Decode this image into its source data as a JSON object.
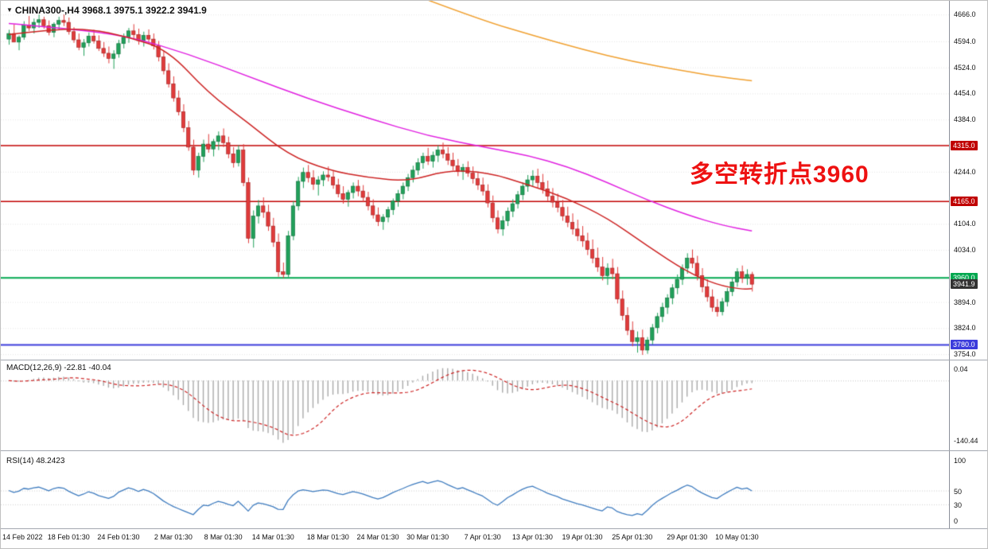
{
  "window": {
    "title": "CHINA300-,H4 3968.1 3975.1 3922.2 3941.9",
    "symbol": "CHINA300-",
    "timeframe": "H4"
  },
  "annotation": {
    "text": "多空转折点3960",
    "color": "#ee1111"
  },
  "indicators": {
    "macd": {
      "label": "MACD(12,26,9) -22.81 -40.04",
      "value": -22.81,
      "signal_value": -40.04,
      "axis_max": "0.04",
      "axis_min": "-140.44",
      "params": {
        "fast": 12,
        "slow": 26,
        "signal": 9
      }
    },
    "rsi": {
      "label": "RSI(14) 48.2423",
      "value": 48.2423,
      "period": 14,
      "axis_values": [
        100,
        50,
        30,
        0
      ],
      "levels": [
        50,
        30
      ]
    }
  },
  "chart_data": {
    "type": "candlestick",
    "title": "CHINA300- H4",
    "last": {
      "open": 3968.1,
      "high": 3975.1,
      "low": 3922.2,
      "close": 3941.9
    },
    "y_axis": {
      "labels": [
        4666,
        4594,
        4524,
        4454,
        4384,
        4244,
        4104,
        4034,
        3894,
        3824,
        3754
      ],
      "min": 3750,
      "max": 4690
    },
    "x_labels": [
      "14 Feb 2022",
      "18 Feb 01:30",
      "24 Feb 01:30",
      "2 Mar 01:30",
      "8 Mar 01:30",
      "14 Mar 01:30",
      "18 Mar 01:30",
      "24 Mar 01:30",
      "30 Mar 01:30",
      "7 Apr 01:30",
      "13 Apr 01:30",
      "19 Apr 01:30",
      "25 Apr 01:30",
      "29 Apr 01:30",
      "10 May 01:30"
    ],
    "x_label_indices": [
      0,
      12,
      22,
      33,
      43,
      53,
      64,
      74,
      84,
      95,
      105,
      115,
      125,
      136,
      146
    ],
    "hlines": [
      {
        "price": 4315.0,
        "label": "4315.0",
        "color": "#c00000",
        "width": 1.6
      },
      {
        "price": 4165.0,
        "label": "4165.0",
        "color": "#c00000",
        "width": 1.6
      },
      {
        "price": 3960.0,
        "label": "3960.0",
        "color": "#00a84f",
        "width": 2
      },
      {
        "price": 3780.0,
        "label": "3780.0",
        "color": "#3c3cdc",
        "width": 2
      }
    ],
    "current_price": {
      "price": 3941.9,
      "label": "3941.9",
      "color": "#333333"
    },
    "colors": {
      "up": "#21a05a",
      "up_border": "#0c6b38",
      "down": "#e03b3b",
      "down_border": "#9e1f1f",
      "macd_hist": "#a9a9a9",
      "macd_signal": "#cc2222",
      "rsi_line": "#3f7cbf",
      "grid": "#e4e4e4"
    },
    "overlays": {
      "ma_magenta": {
        "color": "#e020e0",
        "points": [
          [
            0,
            4642
          ],
          [
            12,
            4628
          ],
          [
            24,
            4608
          ],
          [
            36,
            4560
          ],
          [
            48,
            4500
          ],
          [
            60,
            4440
          ],
          [
            72,
            4388
          ],
          [
            84,
            4340
          ],
          [
            96,
            4308
          ],
          [
            104,
            4288
          ],
          [
            112,
            4258
          ],
          [
            120,
            4215
          ],
          [
            128,
            4168
          ],
          [
            136,
            4128
          ],
          [
            143,
            4100
          ],
          [
            149,
            4085
          ]
        ]
      },
      "ma_red": {
        "color": "#cc2222",
        "points": [
          [
            0,
            4612
          ],
          [
            8,
            4625
          ],
          [
            16,
            4628
          ],
          [
            24,
            4606
          ],
          [
            32,
            4570
          ],
          [
            40,
            4455
          ],
          [
            48,
            4375
          ],
          [
            56,
            4290
          ],
          [
            64,
            4248
          ],
          [
            72,
            4228
          ],
          [
            80,
            4218
          ],
          [
            88,
            4248
          ],
          [
            96,
            4242
          ],
          [
            104,
            4210
          ],
          [
            112,
            4172
          ],
          [
            120,
            4120
          ],
          [
            128,
            4045
          ],
          [
            136,
            3975
          ],
          [
            142,
            3940
          ],
          [
            147,
            3928
          ],
          [
            149,
            3930
          ]
        ]
      },
      "ma_orange": {
        "color": "#f0a030",
        "points": [
          [
            84,
            4705
          ],
          [
            95,
            4650
          ],
          [
            105,
            4610
          ],
          [
            115,
            4572
          ],
          [
            125,
            4540
          ],
          [
            135,
            4515
          ],
          [
            143,
            4498
          ],
          [
            149,
            4488
          ]
        ]
      }
    },
    "candles": [
      [
        4600,
        4625,
        4585,
        4615
      ],
      [
        4615,
        4640,
        4600,
        4592
      ],
      [
        4592,
        4610,
        4570,
        4605
      ],
      [
        4605,
        4648,
        4598,
        4638
      ],
      [
        4638,
        4662,
        4622,
        4630
      ],
      [
        4630,
        4655,
        4615,
        4645
      ],
      [
        4645,
        4666,
        4630,
        4652
      ],
      [
        4652,
        4660,
        4628,
        4636
      ],
      [
        4636,
        4650,
        4610,
        4618
      ],
      [
        4618,
        4645,
        4605,
        4640
      ],
      [
        4640,
        4660,
        4625,
        4650
      ],
      [
        4650,
        4666,
        4635,
        4645
      ],
      [
        4645,
        4658,
        4612,
        4620
      ],
      [
        4620,
        4632,
        4590,
        4598
      ],
      [
        4598,
        4615,
        4570,
        4578
      ],
      [
        4578,
        4600,
        4555,
        4590
      ],
      [
        4590,
        4618,
        4580,
        4608
      ],
      [
        4608,
        4625,
        4588,
        4595
      ],
      [
        4595,
        4610,
        4568,
        4575
      ],
      [
        4575,
        4592,
        4552,
        4562
      ],
      [
        4562,
        4580,
        4535,
        4548
      ],
      [
        4548,
        4570,
        4520,
        4560
      ],
      [
        4560,
        4598,
        4550,
        4588
      ],
      [
        4588,
        4615,
        4575,
        4605
      ],
      [
        4605,
        4630,
        4590,
        4622
      ],
      [
        4622,
        4640,
        4600,
        4612
      ],
      [
        4612,
        4628,
        4585,
        4596
      ],
      [
        4596,
        4620,
        4580,
        4610
      ],
      [
        4610,
        4626,
        4592,
        4600
      ],
      [
        4600,
        4615,
        4572,
        4582
      ],
      [
        4582,
        4595,
        4540,
        4552
      ],
      [
        4552,
        4568,
        4505,
        4515
      ],
      [
        4515,
        4535,
        4470,
        4480
      ],
      [
        4480,
        4500,
        4432,
        4442
      ],
      [
        4442,
        4462,
        4395,
        4405
      ],
      [
        4405,
        4425,
        4350,
        4362
      ],
      [
        4362,
        4380,
        4300,
        4310
      ],
      [
        4310,
        4330,
        4235,
        4248
      ],
      [
        4248,
        4295,
        4228,
        4285
      ],
      [
        4285,
        4330,
        4270,
        4318
      ],
      [
        4318,
        4345,
        4295,
        4305
      ],
      [
        4305,
        4332,
        4285,
        4325
      ],
      [
        4325,
        4352,
        4302,
        4340
      ],
      [
        4340,
        4360,
        4310,
        4322
      ],
      [
        4322,
        4338,
        4280,
        4292
      ],
      [
        4292,
        4310,
        4255,
        4268
      ],
      [
        4268,
        4315,
        4258,
        4302
      ],
      [
        4302,
        4318,
        4205,
        4215
      ],
      [
        4215,
        4228,
        4052,
        4065
      ],
      [
        4065,
        4140,
        4040,
        4125
      ],
      [
        4125,
        4168,
        4105,
        4152
      ],
      [
        4152,
        4175,
        4120,
        4135
      ],
      [
        4135,
        4155,
        4085,
        4098
      ],
      [
        4098,
        4120,
        4042,
        4055
      ],
      [
        4055,
        4078,
        3962,
        3975
      ],
      [
        3975,
        4000,
        3958,
        3968
      ],
      [
        3968,
        4085,
        3960,
        4072
      ],
      [
        4072,
        4165,
        4060,
        4152
      ],
      [
        4152,
        4230,
        4140,
        4218
      ],
      [
        4218,
        4255,
        4200,
        4242
      ],
      [
        4242,
        4262,
        4215,
        4228
      ],
      [
        4228,
        4248,
        4195,
        4210
      ],
      [
        4210,
        4232,
        4180,
        4222
      ],
      [
        4222,
        4245,
        4205,
        4235
      ],
      [
        4235,
        4258,
        4218,
        4230
      ],
      [
        4230,
        4246,
        4198,
        4208
      ],
      [
        4208,
        4225,
        4175,
        4185
      ],
      [
        4185,
        4205,
        4158,
        4170
      ],
      [
        4170,
        4195,
        4150,
        4188
      ],
      [
        4188,
        4215,
        4172,
        4205
      ],
      [
        4205,
        4222,
        4178,
        4192
      ],
      [
        4192,
        4208,
        4162,
        4175
      ],
      [
        4175,
        4190,
        4140,
        4152
      ],
      [
        4152,
        4170,
        4118,
        4128
      ],
      [
        4128,
        4148,
        4098,
        4110
      ],
      [
        4110,
        4130,
        4088,
        4122
      ],
      [
        4122,
        4150,
        4108,
        4142
      ],
      [
        4142,
        4172,
        4128,
        4165
      ],
      [
        4165,
        4195,
        4150,
        4185
      ],
      [
        4185,
        4215,
        4170,
        4205
      ],
      [
        4205,
        4238,
        4192,
        4228
      ],
      [
        4228,
        4260,
        4215,
        4248
      ],
      [
        4248,
        4280,
        4235,
        4268
      ],
      [
        4268,
        4295,
        4252,
        4285
      ],
      [
        4285,
        4308,
        4262,
        4272
      ],
      [
        4272,
        4298,
        4255,
        4288
      ],
      [
        4288,
        4315,
        4270,
        4302
      ],
      [
        4302,
        4322,
        4280,
        4292
      ],
      [
        4292,
        4310,
        4262,
        4275
      ],
      [
        4275,
        4295,
        4248,
        4260
      ],
      [
        4260,
        4278,
        4232,
        4245
      ],
      [
        4245,
        4265,
        4222,
        4255
      ],
      [
        4255,
        4272,
        4230,
        4240
      ],
      [
        4240,
        4258,
        4212,
        4225
      ],
      [
        4225,
        4242,
        4195,
        4208
      ],
      [
        4208,
        4228,
        4180,
        4192
      ],
      [
        4192,
        4210,
        4148,
        4160
      ],
      [
        4160,
        4180,
        4108,
        4120
      ],
      [
        4120,
        4140,
        4078,
        4090
      ],
      [
        4090,
        4125,
        4072,
        4112
      ],
      [
        4112,
        4148,
        4098,
        4138
      ],
      [
        4138,
        4170,
        4122,
        4158
      ],
      [
        4158,
        4192,
        4145,
        4182
      ],
      [
        4182,
        4215,
        4168,
        4205
      ],
      [
        4205,
        4235,
        4190,
        4222
      ],
      [
        4222,
        4248,
        4205,
        4232
      ],
      [
        4232,
        4252,
        4200,
        4215
      ],
      [
        4215,
        4238,
        4185,
        4198
      ],
      [
        4198,
        4220,
        4165,
        4178
      ],
      [
        4178,
        4200,
        4148,
        4162
      ],
      [
        4162,
        4185,
        4135,
        4148
      ],
      [
        4148,
        4168,
        4112,
        4125
      ],
      [
        4125,
        4150,
        4095,
        4108
      ],
      [
        4108,
        4132,
        4075,
        4090
      ],
      [
        4090,
        4115,
        4058,
        4072
      ],
      [
        4072,
        4098,
        4042,
        4058
      ],
      [
        4058,
        4080,
        4020,
        4035
      ],
      [
        4035,
        4062,
        3998,
        4012
      ],
      [
        4012,
        4040,
        3975,
        3988
      ],
      [
        3988,
        4015,
        3952,
        3965
      ],
      [
        3965,
        3998,
        3940,
        3985
      ],
      [
        3985,
        4010,
        3955,
        3970
      ],
      [
        3970,
        3988,
        3890,
        3902
      ],
      [
        3902,
        3925,
        3845,
        3858
      ],
      [
        3858,
        3880,
        3805,
        3818
      ],
      [
        3818,
        3842,
        3775,
        3788
      ],
      [
        3788,
        3815,
        3758,
        3798
      ],
      [
        3798,
        3820,
        3752,
        3765
      ],
      [
        3765,
        3800,
        3755,
        3792
      ],
      [
        3792,
        3835,
        3780,
        3825
      ],
      [
        3825,
        3865,
        3810,
        3855
      ],
      [
        3855,
        3892,
        3840,
        3880
      ],
      [
        3880,
        3915,
        3862,
        3905
      ],
      [
        3905,
        3942,
        3888,
        3932
      ],
      [
        3932,
        3968,
        3915,
        3955
      ],
      [
        3955,
        3995,
        3940,
        3985
      ],
      [
        3985,
        4025,
        3970,
        4012
      ],
      [
        4012,
        4035,
        3985,
        3998
      ],
      [
        3998,
        4018,
        3952,
        3965
      ],
      [
        3965,
        3985,
        3920,
        3935
      ],
      [
        3935,
        3955,
        3895,
        3908
      ],
      [
        3908,
        3928,
        3868,
        3880
      ],
      [
        3880,
        3902,
        3855,
        3868
      ],
      [
        3868,
        3905,
        3858,
        3895
      ],
      [
        3895,
        3932,
        3882,
        3922
      ],
      [
        3922,
        3958,
        3910,
        3948
      ],
      [
        3948,
        3985,
        3935,
        3975
      ],
      [
        3975,
        3992,
        3945,
        3958
      ],
      [
        3958,
        3982,
        3940,
        3968
      ],
      [
        3968.1,
        3975.1,
        3922.2,
        3941.9
      ]
    ]
  }
}
